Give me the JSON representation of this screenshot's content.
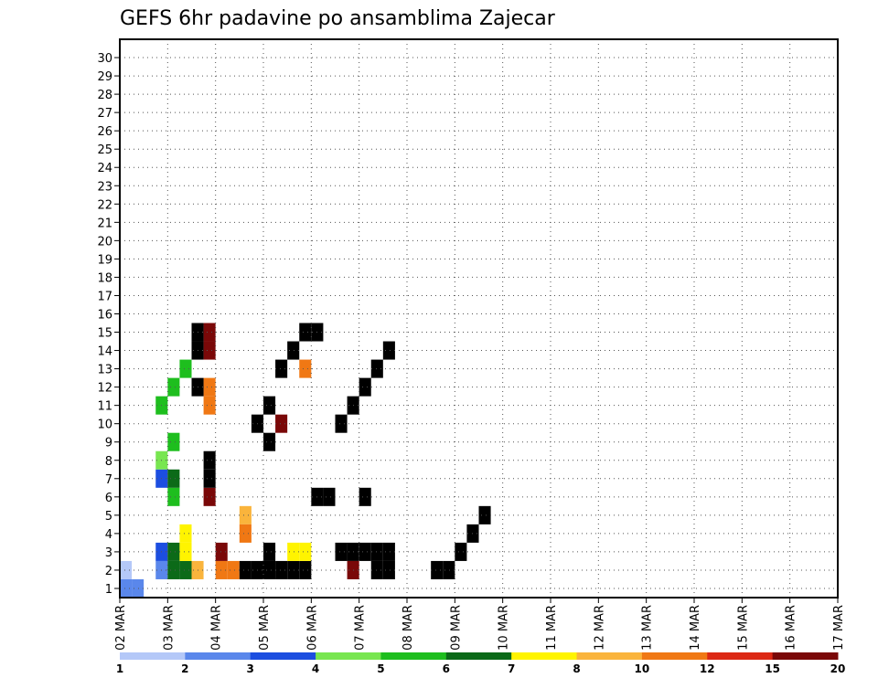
{
  "chart_data": {
    "type": "heatmap",
    "title": "GEFS 6hr padavine po ansamblima Zajecar",
    "xlabel": "",
    "ylabel": "",
    "x_tick_labels": [
      "02 MAR",
      "03 MAR",
      "04 MAR",
      "05 MAR",
      "06 MAR",
      "07 MAR",
      "08 MAR",
      "09 MAR",
      "10 MAR",
      "11 MAR",
      "12 MAR",
      "13 MAR",
      "14 MAR",
      "15 MAR",
      "16 MAR",
      "17 MAR"
    ],
    "y_tick_labels": [
      "1",
      "2",
      "3",
      "4",
      "5",
      "6",
      "7",
      "8",
      "9",
      "10",
      "11",
      "12",
      "13",
      "14",
      "15",
      "16",
      "17",
      "18",
      "19",
      "20",
      "21",
      "22",
      "23",
      "24",
      "25",
      "26",
      "27",
      "28",
      "29",
      "30"
    ],
    "x_range_days": [
      0,
      15
    ],
    "y_range": [
      0,
      30
    ],
    "step_hours": 6,
    "grid": true,
    "colorbar": {
      "labels": [
        "1",
        "2",
        "3",
        "4",
        "5",
        "6",
        "7",
        "8",
        "10",
        "12",
        "15",
        "20"
      ],
      "colors": [
        "#b4c8f8",
        "#5a87eb",
        "#1c4ee0",
        "#78e650",
        "#1ebe1e",
        "#0c6a18",
        "#fff400",
        "#fab43c",
        "#f07814",
        "#dc2814",
        "#7a0808"
      ]
    },
    "cells": [
      [
        0,
        0,
        1
      ],
      [
        0,
        1,
        1
      ],
      [
        3,
        1,
        1
      ],
      [
        3,
        2,
        2
      ],
      [
        3,
        3,
        2
      ],
      [
        4,
        5,
        1
      ],
      [
        4,
        5,
        2
      ],
      [
        14,
        14,
        1
      ],
      [
        15,
        14,
        1
      ],
      [
        16,
        15,
        5
      ],
      [
        17,
        15,
        5
      ],
      [
        18,
        15,
        2
      ],
      [
        19,
        15,
        2
      ],
      [
        20,
        14,
        2
      ],
      [
        21,
        14,
        1
      ],
      [
        3,
        2,
        6
      ],
      [
        3,
        3,
        7
      ],
      [
        3,
        4,
        10
      ],
      [
        4,
        4,
        5
      ],
      [
        4,
        5,
        1
      ],
      [
        4,
        5,
        1
      ],
      [
        5,
        5,
        1
      ],
      [
        6,
        7,
        1
      ],
      [
        6,
        8,
        1
      ],
      [
        6,
        9,
        1
      ],
      [
        12,
        12,
        2
      ],
      [
        4,
        4,
        8
      ],
      [
        4,
        5,
        8
      ],
      [
        5,
        5,
        1
      ],
      [
        14,
        6,
        2
      ],
      [
        15,
        6,
        2
      ],
      [
        4,
        4,
        11
      ],
      [
        4,
        5,
        6
      ],
      [
        4,
        6,
        1
      ],
      [
        20,
        13,
        5
      ],
      [
        21,
        13,
        2
      ],
      [
        22,
        13,
        1
      ],
      [
        7,
        8,
        10
      ],
      [
        7,
        8,
        11
      ],
      [
        8,
        8,
        1
      ],
      [
        9,
        8,
        1
      ],
      [
        18,
        10,
        2
      ],
      [
        19,
        10,
        1
      ],
      [
        15,
        8,
        12
      ],
      [
        10,
        11,
        1
      ],
      [
        11,
        11,
        1
      ],
      [
        12,
        11,
        1
      ],
      [
        13,
        11,
        1
      ],
      [
        7,
        10,
        5
      ],
      [
        7,
        10,
        13
      ],
      [
        7,
        10,
        14
      ],
      [
        8,
        10,
        2
      ],
      [
        13,
        10,
        9
      ],
      [
        7,
        11,
        6
      ],
      [
        7,
        11,
        7
      ],
      [
        6,
        11,
        11
      ],
      [
        6,
        11,
        13
      ],
      [
        6,
        11,
        14
      ],
      [
        0,
        0,
        1
      ],
      [
        5,
        6,
        2
      ],
      [
        5,
        6,
        3
      ],
      [
        5,
        4,
        12
      ],
      [
        10,
        7,
        4
      ],
      [
        10,
        8,
        3
      ],
      [
        15,
        9,
        1
      ],
      [
        12,
        11,
        8
      ],
      [
        11,
        11,
        9
      ],
      [
        12,
        11,
        10
      ],
      [
        13,
        11,
        12
      ],
      [
        14,
        11,
        13
      ],
      [
        15,
        11,
        14
      ],
      [
        16,
        11,
        14
      ],
      [
        22,
        14,
        2
      ],
      [
        26,
        14,
        1
      ],
      [
        27,
        14,
        1
      ],
      [
        28,
        14,
        2
      ],
      [
        29,
        14,
        3
      ],
      [
        30,
        14,
        4
      ],
      [
        18,
        13,
        9
      ],
      [
        19,
        13,
        10
      ],
      [
        20,
        13,
        11
      ],
      [
        21,
        13,
        12
      ],
      [
        22,
        13,
        13
      ],
      [
        0,
        1,
        0
      ],
      [
        1,
        1,
        0
      ]
    ]
  }
}
